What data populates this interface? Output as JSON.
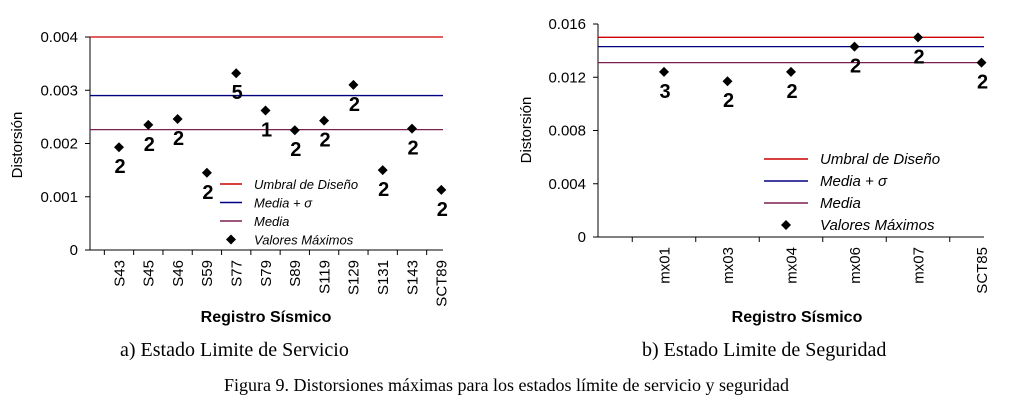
{
  "figure": {
    "caption": "Figura 9. Distorsiones máximas para los estados límite de servicio y seguridad"
  },
  "chart_data": [
    {
      "type": "scatter",
      "subtitle": "a) Estado Limite de Servicio",
      "xlabel": "Registro Sísmico",
      "ylabel": "Distorsión",
      "ylim": [
        0,
        0.004
      ],
      "yticks": [
        "0",
        "0.001",
        "0.002",
        "0.003",
        "0.004"
      ],
      "ytick_values": [
        0,
        0.001,
        0.002,
        0.003,
        0.004
      ],
      "grid": false,
      "legend_position": "lower-right",
      "categories": [
        "S43",
        "S45",
        "S46",
        "S59",
        "S77",
        "S79",
        "S89",
        "S119",
        "S129",
        "S131",
        "S143",
        "SCT89"
      ],
      "hlines": [
        {
          "name": "Umbral de Diseño",
          "value": 0.004,
          "color": "#cc0000"
        },
        {
          "name": "Media + σ",
          "value": 0.0029,
          "color": "#000080"
        },
        {
          "name": "Media",
          "value": 0.00226,
          "color": "#7a2050"
        }
      ],
      "series": [
        {
          "name": "Valores Máximos",
          "values": [
            0.00193,
            0.00235,
            0.00246,
            0.00145,
            0.00332,
            0.00262,
            0.00225,
            0.00243,
            0.0031,
            0.0015,
            0.00228,
            0.00113
          ],
          "labels": [
            "2",
            "2",
            "2",
            "2",
            "5",
            "1",
            "2",
            "2",
            "2",
            "2",
            "2",
            "2"
          ]
        }
      ]
    },
    {
      "type": "scatter",
      "subtitle": "b) Estado Limite de Seguridad",
      "xlabel": "Registro Sísmico",
      "ylabel": "Distorsión",
      "ylim": [
        0,
        0.016
      ],
      "yticks": [
        "0",
        "0.004",
        "0.008",
        "0.012",
        "0.016"
      ],
      "ytick_values": [
        0,
        0.004,
        0.008,
        0.012,
        0.016
      ],
      "grid": false,
      "legend_position": "lower-right",
      "categories": [
        "mx01",
        "mx03",
        "mx04",
        "mx06",
        "mx07",
        "SCT85"
      ],
      "hlines": [
        {
          "name": "Umbral de Diseño",
          "value": 0.015,
          "color": "#cc0000"
        },
        {
          "name": "Media + σ",
          "value": 0.0143,
          "color": "#000080"
        },
        {
          "name": "Media",
          "value": 0.0131,
          "color": "#7a2050"
        }
      ],
      "series": [
        {
          "name": "Valores Máximos",
          "values": [
            0.0124,
            0.0117,
            0.0124,
            0.0143,
            0.015,
            0.0131
          ],
          "labels": [
            "3",
            "2",
            "2",
            "2",
            "2",
            "2"
          ]
        }
      ]
    }
  ]
}
